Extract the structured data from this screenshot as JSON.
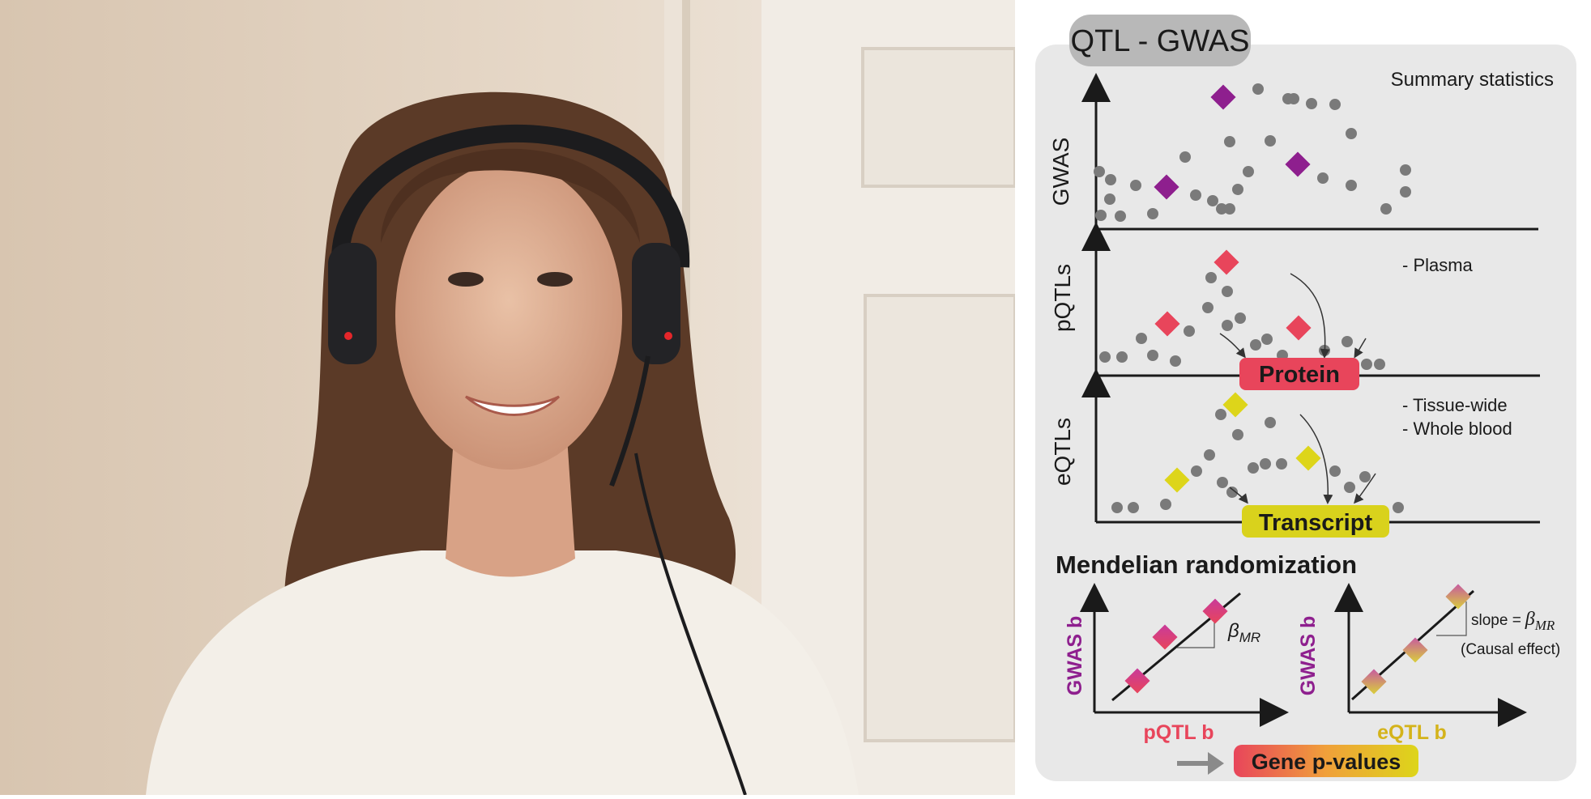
{
  "figure": {
    "title": "QTL - GWAS",
    "panels": {
      "gwas": {
        "ylabel": "GWAS",
        "note": "Summary statistics"
      },
      "pqtl": {
        "ylabel": "pQTLs",
        "note1": "- Plasma",
        "box": "Protein"
      },
      "eqtl": {
        "ylabel": "eQTLs",
        "note1": "- Tissue-wide",
        "note2": "- Whole blood",
        "box": "Transcript"
      }
    },
    "mr": {
      "heading": "Mendelian randomization",
      "left": {
        "ylabel": "GWAS b",
        "xlabel": "pQTL b",
        "slope_symbol": "β",
        "slope_sub": "MR"
      },
      "right": {
        "ylabel": "GWAS b",
        "xlabel": "eQTL b",
        "slope_text": "slope =",
        "slope_symbol": "β",
        "slope_sub": "MR",
        "caption": "(Causal effect)"
      }
    },
    "result": "Gene p-values"
  },
  "colors": {
    "panel_bg": "#e8e8e8",
    "title_tab": "#b8b8b8",
    "dot": "#7a7a7a",
    "gwas_marker": "#8e1f8e",
    "pqtl_marker": "#e8455b",
    "eqtl_marker": "#ddd51a",
    "protein_box": "#e8455b",
    "transcript_box": "#d9d21c",
    "pqtl_label": "#e8455b",
    "eqtl_label": "#d4b31a",
    "gwasb_label": "#8e1f8e"
  }
}
